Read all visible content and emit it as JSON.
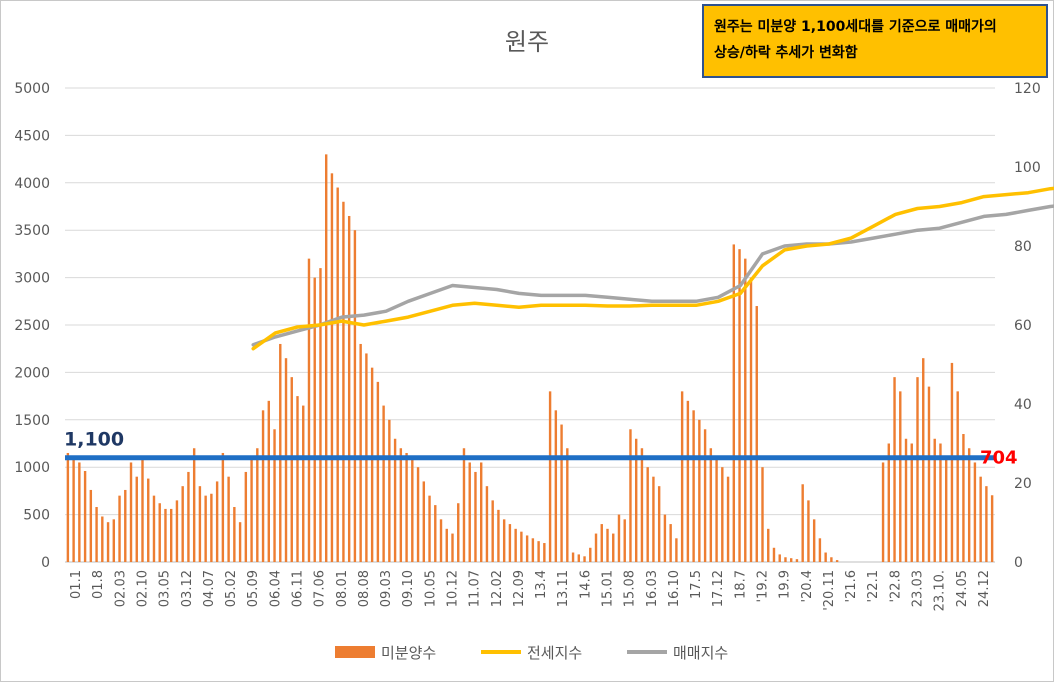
{
  "chart_data": {
    "type": "bar+line",
    "title": "원주",
    "annotation_box": {
      "line1": "원주는 미분양 1,100세대를 기준으로 매매가의",
      "line2": "상승/하락 추세가 변화함"
    },
    "y_left": {
      "min": 0,
      "max": 5000,
      "ticks": [
        0,
        500,
        1000,
        1500,
        2000,
        2500,
        3000,
        3500,
        4000,
        4500,
        5000
      ]
    },
    "y_right": {
      "min": 0,
      "max": 120,
      "ticks": [
        0,
        20,
        40,
        60,
        80,
        100,
        120
      ]
    },
    "x_tick_labels": [
      "01.1",
      "01.8",
      "02.03",
      "02.10",
      "03.05",
      "03.12",
      "04.07",
      "05.02",
      "05.09",
      "06.04",
      "06.11",
      "07.06",
      "08.01",
      "08.08",
      "09.03",
      "09.10",
      "10.05",
      "10.12",
      "11.07",
      "12.02",
      "12.09",
      "13.4",
      "13.11",
      "14.6",
      "15.01",
      "15.08",
      "16.03",
      "16.10",
      "17.5",
      "17.12",
      "18.7",
      "'19.2",
      "19.9",
      "'20.4",
      "'20.11",
      "'21.6",
      "'22.1",
      "'22.8",
      "23.03",
      "23.10.",
      "24.05",
      "24.12"
    ],
    "threshold": {
      "value": 1100,
      "label": "1,100",
      "color": "#1f6fc5"
    },
    "last_value_label": {
      "text": "704",
      "color": "#ff0000"
    },
    "legend": [
      {
        "name": "미분양수",
        "color": "#ed7d31",
        "kind": "bar"
      },
      {
        "name": "전세지수",
        "color": "#ffc000",
        "kind": "line"
      },
      {
        "name": "매매지수",
        "color": "#a5a5a5",
        "kind": "line"
      }
    ],
    "series": [
      {
        "name": "미분양수",
        "axis": "left",
        "points": [
          [
            0,
            1150
          ],
          [
            1,
            1120
          ],
          [
            2,
            1050
          ],
          [
            3,
            960
          ],
          [
            4,
            760
          ],
          [
            5,
            580
          ],
          [
            6,
            480
          ],
          [
            7,
            420
          ],
          [
            8,
            450
          ],
          [
            9,
            700
          ],
          [
            10,
            760
          ],
          [
            11,
            1050
          ],
          [
            12,
            900
          ],
          [
            13,
            1100
          ],
          [
            14,
            880
          ],
          [
            15,
            700
          ],
          [
            16,
            620
          ],
          [
            17,
            560
          ],
          [
            18,
            560
          ],
          [
            19,
            650
          ],
          [
            20,
            800
          ],
          [
            21,
            950
          ],
          [
            22,
            1200
          ],
          [
            23,
            800
          ],
          [
            24,
            700
          ],
          [
            25,
            720
          ],
          [
            26,
            850
          ],
          [
            27,
            1150
          ],
          [
            28,
            900
          ],
          [
            29,
            580
          ],
          [
            30,
            420
          ],
          [
            31,
            950
          ],
          [
            32,
            1100
          ],
          [
            33,
            1200
          ],
          [
            34,
            1600
          ],
          [
            35,
            1700
          ],
          [
            36,
            1400
          ],
          [
            37,
            2300
          ],
          [
            38,
            2150
          ],
          [
            39,
            1950
          ],
          [
            40,
            1750
          ],
          [
            41,
            1650
          ],
          [
            42,
            3200
          ],
          [
            43,
            3000
          ],
          [
            44,
            3100
          ],
          [
            45,
            4300
          ],
          [
            46,
            4100
          ],
          [
            47,
            3950
          ],
          [
            48,
            3800
          ],
          [
            49,
            3650
          ],
          [
            50,
            3500
          ],
          [
            51,
            2300
          ],
          [
            52,
            2200
          ],
          [
            53,
            2050
          ],
          [
            54,
            1900
          ],
          [
            55,
            1650
          ],
          [
            56,
            1500
          ],
          [
            57,
            1300
          ],
          [
            58,
            1200
          ],
          [
            59,
            1150
          ],
          [
            60,
            1100
          ],
          [
            61,
            1000
          ],
          [
            62,
            850
          ],
          [
            63,
            700
          ],
          [
            64,
            600
          ],
          [
            65,
            450
          ],
          [
            66,
            350
          ],
          [
            67,
            300
          ],
          [
            68,
            620
          ],
          [
            69,
            1200
          ],
          [
            70,
            1050
          ],
          [
            71,
            950
          ],
          [
            72,
            1050
          ],
          [
            73,
            800
          ],
          [
            74,
            650
          ],
          [
            75,
            550
          ],
          [
            76,
            450
          ],
          [
            77,
            400
          ],
          [
            78,
            350
          ],
          [
            79,
            320
          ],
          [
            80,
            280
          ],
          [
            81,
            250
          ],
          [
            82,
            220
          ],
          [
            83,
            200
          ],
          [
            84,
            1800
          ],
          [
            85,
            1600
          ],
          [
            86,
            1450
          ],
          [
            87,
            1200
          ],
          [
            88,
            100
          ],
          [
            89,
            80
          ],
          [
            90,
            60
          ],
          [
            91,
            150
          ],
          [
            92,
            300
          ],
          [
            93,
            400
          ],
          [
            94,
            350
          ],
          [
            95,
            300
          ],
          [
            96,
            500
          ],
          [
            97,
            450
          ],
          [
            98,
            1400
          ],
          [
            99,
            1300
          ],
          [
            100,
            1200
          ],
          [
            101,
            1000
          ],
          [
            102,
            900
          ],
          [
            103,
            800
          ],
          [
            104,
            500
          ],
          [
            105,
            400
          ],
          [
            106,
            250
          ],
          [
            107,
            1800
          ],
          [
            108,
            1700
          ],
          [
            109,
            1600
          ],
          [
            110,
            1500
          ],
          [
            111,
            1400
          ],
          [
            112,
            1200
          ],
          [
            113,
            1100
          ],
          [
            114,
            1000
          ],
          [
            115,
            900
          ],
          [
            116,
            3350
          ],
          [
            117,
            3300
          ],
          [
            118,
            3200
          ],
          [
            119,
            3000
          ],
          [
            120,
            2700
          ],
          [
            121,
            1000
          ],
          [
            122,
            350
          ],
          [
            123,
            150
          ],
          [
            124,
            80
          ],
          [
            125,
            50
          ],
          [
            126,
            40
          ],
          [
            127,
            30
          ],
          [
            128,
            820
          ],
          [
            129,
            650
          ],
          [
            130,
            450
          ],
          [
            131,
            250
          ],
          [
            132,
            100
          ],
          [
            133,
            50
          ],
          [
            134,
            20
          ],
          [
            135,
            0
          ],
          [
            136,
            0
          ],
          [
            137,
            0
          ],
          [
            138,
            0
          ],
          [
            139,
            0
          ],
          [
            140,
            0
          ],
          [
            141,
            0
          ],
          [
            142,
            1050
          ],
          [
            143,
            1250
          ],
          [
            144,
            1950
          ],
          [
            145,
            1800
          ],
          [
            146,
            1300
          ],
          [
            147,
            1250
          ],
          [
            148,
            1950
          ],
          [
            149,
            2150
          ],
          [
            150,
            1850
          ],
          [
            151,
            1300
          ],
          [
            152,
            1250
          ],
          [
            153,
            1100
          ],
          [
            154,
            2100
          ],
          [
            155,
            1800
          ],
          [
            156,
            1350
          ],
          [
            157,
            1200
          ],
          [
            158,
            1050
          ],
          [
            159,
            900
          ],
          [
            160,
            800
          ],
          [
            161,
            704
          ]
        ]
      },
      {
        "name": "전세지수",
        "axis": "right",
        "points": [
          [
            8.5,
            54
          ],
          [
            9.5,
            58
          ],
          [
            10.5,
            59.5
          ],
          [
            11.5,
            60
          ],
          [
            12.5,
            61
          ],
          [
            13.5,
            60
          ],
          [
            14.5,
            61
          ],
          [
            15.5,
            62
          ],
          [
            16.5,
            63.5
          ],
          [
            17.5,
            65
          ],
          [
            18.5,
            65.5
          ],
          [
            19.5,
            65
          ],
          [
            20.5,
            64.5
          ],
          [
            21.5,
            65
          ],
          [
            22.5,
            65
          ],
          [
            23.5,
            65
          ],
          [
            24.5,
            64.8
          ],
          [
            25.5,
            64.8
          ],
          [
            26.5,
            65
          ],
          [
            27.5,
            65
          ],
          [
            28.5,
            65
          ],
          [
            29.5,
            66
          ],
          [
            30.5,
            68
          ],
          [
            31.5,
            75
          ],
          [
            32.5,
            79
          ],
          [
            33.5,
            80
          ],
          [
            34.5,
            80.5
          ],
          [
            35.5,
            82
          ],
          [
            36.5,
            85
          ],
          [
            37.5,
            88
          ],
          [
            38.5,
            89.5
          ],
          [
            39.5,
            90
          ],
          [
            40.5,
            91
          ],
          [
            41.5,
            92.5
          ],
          [
            42.5,
            93
          ],
          [
            43.5,
            93.5
          ],
          [
            44.5,
            94.5
          ],
          [
            45.5,
            95
          ],
          [
            46.5,
            95
          ],
          [
            47.5,
            95
          ],
          [
            48.5,
            95
          ],
          [
            49.5,
            94.5
          ],
          [
            50.5,
            93.5
          ],
          [
            51.5,
            90
          ],
          [
            52.5,
            90
          ],
          [
            53.5,
            90
          ],
          [
            54.5,
            91
          ],
          [
            55.5,
            93
          ],
          [
            56.5,
            96
          ],
          [
            57.5,
            100
          ],
          [
            58.5,
            104
          ],
          [
            59.5,
            107
          ],
          [
            60.5,
            108
          ],
          [
            61.5,
            105
          ],
          [
            62.5,
            103
          ],
          [
            63.5,
            104
          ],
          [
            64.5,
            105
          ],
          [
            65.5,
            106
          ],
          [
            66.5,
            106
          ],
          [
            67.5,
            106.5
          ],
          [
            68.5,
            106.5
          ],
          [
            69.5,
            106
          ]
        ]
      },
      {
        "name": "매매지수",
        "axis": "right",
        "points": [
          [
            8.5,
            55
          ],
          [
            9.5,
            57
          ],
          [
            10.5,
            58.5
          ],
          [
            11.5,
            60
          ],
          [
            12.5,
            62
          ],
          [
            13.5,
            62.5
          ],
          [
            14.5,
            63.5
          ],
          [
            15.5,
            66
          ],
          [
            16.5,
            68
          ],
          [
            17.5,
            70
          ],
          [
            18.5,
            69.5
          ],
          [
            19.5,
            69
          ],
          [
            20.5,
            68
          ],
          [
            21.5,
            67.5
          ],
          [
            22.5,
            67.5
          ],
          [
            23.5,
            67.5
          ],
          [
            24.5,
            67
          ],
          [
            25.5,
            66.5
          ],
          [
            26.5,
            66
          ],
          [
            27.5,
            66
          ],
          [
            28.5,
            66
          ],
          [
            29.5,
            67
          ],
          [
            30.5,
            70
          ],
          [
            31.5,
            78
          ],
          [
            32.5,
            80
          ],
          [
            33.5,
            80.5
          ],
          [
            34.5,
            80.5
          ],
          [
            35.5,
            81
          ],
          [
            36.5,
            82
          ],
          [
            37.5,
            83
          ],
          [
            38.5,
            84
          ],
          [
            39.5,
            84.5
          ],
          [
            40.5,
            86
          ],
          [
            41.5,
            87.5
          ],
          [
            42.5,
            88
          ],
          [
            43.5,
            89
          ],
          [
            44.5,
            90
          ],
          [
            45.5,
            90.5
          ],
          [
            46.5,
            91
          ],
          [
            47.5,
            91
          ],
          [
            48.5,
            90.5
          ],
          [
            49.5,
            89
          ],
          [
            50.5,
            87
          ],
          [
            51.5,
            86
          ],
          [
            52.5,
            85.5
          ],
          [
            53.5,
            85
          ],
          [
            54.5,
            86
          ],
          [
            55.5,
            89
          ],
          [
            56.5,
            97
          ],
          [
            57.5,
            100
          ],
          [
            58.5,
            104
          ],
          [
            59.5,
            106
          ],
          [
            60.5,
            103
          ],
          [
            61.5,
            99.5
          ],
          [
            62.5,
            99
          ],
          [
            63.5,
            98.5
          ],
          [
            64.5,
            98.5
          ],
          [
            65.5,
            98.5
          ],
          [
            66.5,
            98
          ],
          [
            67.5,
            97.5
          ],
          [
            68.5,
            97
          ],
          [
            69.5,
            96.5
          ]
        ]
      }
    ]
  }
}
